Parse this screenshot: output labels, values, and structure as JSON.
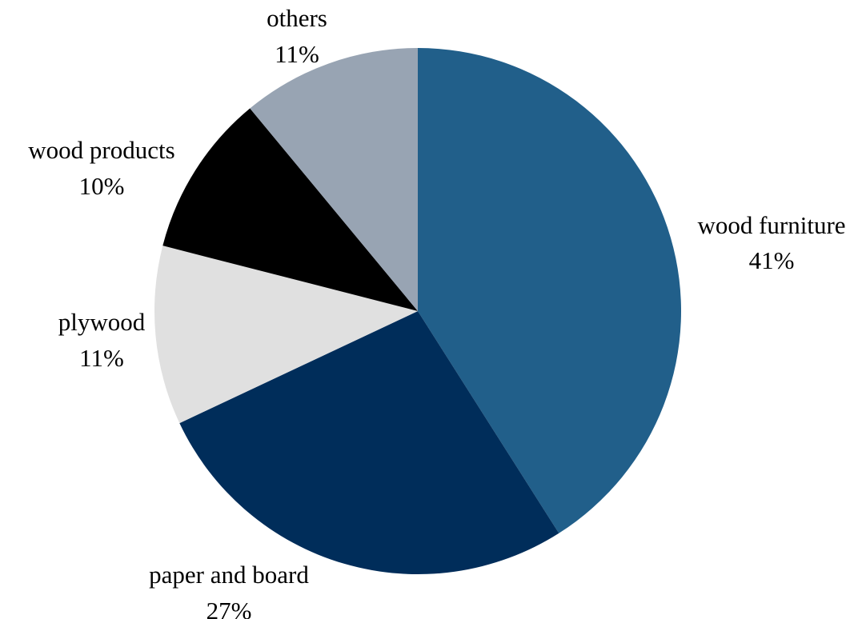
{
  "chart_data": {
    "type": "pie",
    "title": "",
    "start_angle_deg": 0,
    "direction": "clockwise",
    "slices": [
      {
        "label": "wood furniture",
        "value": 41,
        "value_label": "41%",
        "color": "#215f8a"
      },
      {
        "label": "paper and board",
        "value": 27,
        "value_label": "27%",
        "color": "#002d5a"
      },
      {
        "label": "plywood",
        "value": 11,
        "value_label": "11%",
        "color": "#e0e0e0"
      },
      {
        "label": "wood products",
        "value": 10,
        "value_label": "10%",
        "color": "#000000"
      },
      {
        "label": "others",
        "value": 11,
        "value_label": "11%",
        "color": "#98a4b3"
      }
    ]
  }
}
